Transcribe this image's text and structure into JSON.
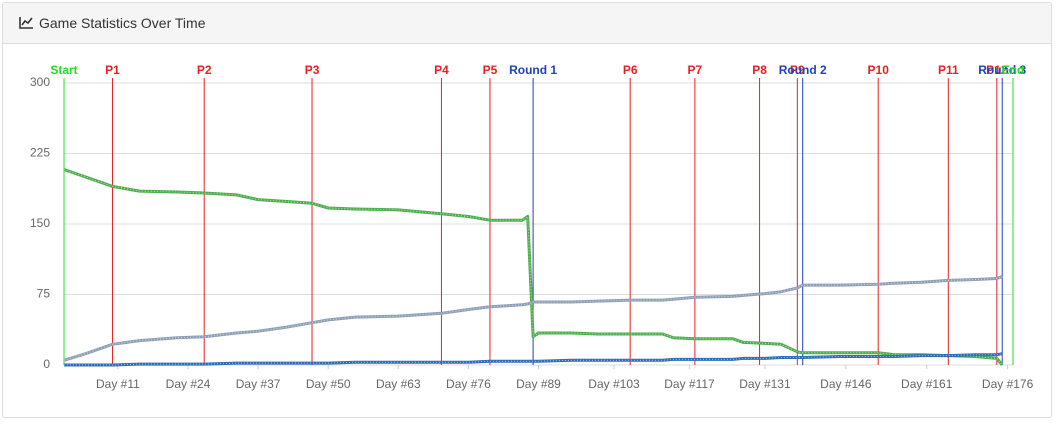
{
  "chart_data": {
    "type": "line",
    "title": "Game Statistics Over Time",
    "x": [
      1,
      5,
      8,
      10,
      15,
      22,
      27,
      33,
      37,
      42,
      47,
      50,
      55,
      63,
      71,
      76,
      80,
      86,
      87,
      88,
      89,
      95,
      100,
      106,
      112,
      114,
      118,
      125,
      127,
      131,
      134,
      137,
      138,
      145,
      152,
      155,
      160,
      165,
      170,
      174,
      175
    ],
    "series": [
      {
        "color": "#4cae4c",
        "values": [
          208,
          200,
          194,
          190,
          185,
          184,
          183,
          181,
          176,
          174,
          172,
          167,
          166,
          165,
          161,
          158,
          154,
          154,
          158,
          30,
          34,
          34,
          33,
          33,
          33,
          29,
          28,
          28,
          24,
          23,
          22,
          14,
          13,
          13,
          13,
          11,
          11,
          10,
          9,
          7,
          0
        ]
      },
      {
        "color": "#8e9fb5",
        "values": [
          5,
          12,
          18,
          22,
          26,
          29,
          30,
          34,
          36,
          40,
          45,
          48,
          51,
          52,
          55,
          59,
          62,
          64,
          65,
          67,
          67,
          67,
          68,
          69,
          69,
          70,
          72,
          73,
          74,
          76,
          78,
          82,
          85,
          85,
          86,
          87,
          88,
          90,
          91,
          92,
          94
        ]
      },
      {
        "color": "#2f6db5",
        "values": [
          0,
          0,
          0,
          0,
          1,
          1,
          1,
          2,
          2,
          2,
          2,
          2,
          3,
          3,
          3,
          3,
          4,
          4,
          4,
          4,
          4,
          5,
          5,
          5,
          5,
          6,
          6,
          6,
          7,
          7,
          8,
          8,
          8,
          9,
          9,
          9,
          10,
          10,
          11,
          11,
          12
        ]
      }
    ],
    "xlim": [
      1,
      177
    ],
    "xticks": [
      {
        "value": 11,
        "label": "Day #11"
      },
      {
        "value": 24,
        "label": "Day #24"
      },
      {
        "value": 37,
        "label": "Day #37"
      },
      {
        "value": 50,
        "label": "Day #50"
      },
      {
        "value": 63,
        "label": "Day #63"
      },
      {
        "value": 76,
        "label": "Day #76"
      },
      {
        "value": 89,
        "label": "Day #89"
      },
      {
        "value": 103,
        "label": "Day #103"
      },
      {
        "value": 117,
        "label": "Day #117"
      },
      {
        "value": 131,
        "label": "Day #131"
      },
      {
        "value": 146,
        "label": "Day #146"
      },
      {
        "value": 161,
        "label": "Day #161"
      },
      {
        "value": 176,
        "label": "Day #176"
      }
    ],
    "ylim": [
      0,
      300
    ],
    "yticks": [
      0,
      75,
      150,
      225,
      300
    ],
    "grid": true,
    "annotations": [
      {
        "label": "Start",
        "x": 1,
        "color": "#22dd22"
      },
      {
        "label": "P1",
        "x": 10,
        "color": "#e82020"
      },
      {
        "label": "P2",
        "x": 27,
        "color": "#e82020"
      },
      {
        "label": "P3",
        "x": 47,
        "color": "#e82020"
      },
      {
        "label": "P4",
        "x": 71,
        "color": "#e82020"
      },
      {
        "label": "P5",
        "x": 80,
        "color": "#e82020"
      },
      {
        "label": "Round 1",
        "x": 88,
        "color": "#2040c0"
      },
      {
        "label": "P6",
        "x": 106,
        "color": "#e82020"
      },
      {
        "label": "P7",
        "x": 118,
        "color": "#e82020"
      },
      {
        "label": "P8",
        "x": 130,
        "color": "#e82020"
      },
      {
        "label": "P9",
        "x": 137,
        "color": "#e82020"
      },
      {
        "label": "Round 2",
        "x": 138,
        "color": "#2040c0"
      },
      {
        "label": "P10",
        "x": 152,
        "color": "#e82020"
      },
      {
        "label": "P11",
        "x": 165,
        "color": "#e82020"
      },
      {
        "label": "P12",
        "x": 174,
        "color": "#e82020"
      },
      {
        "label": "Round 3",
        "x": 175,
        "color": "#2040c0"
      },
      {
        "label": "End",
        "x": 177,
        "color": "#22dd22"
      }
    ]
  }
}
